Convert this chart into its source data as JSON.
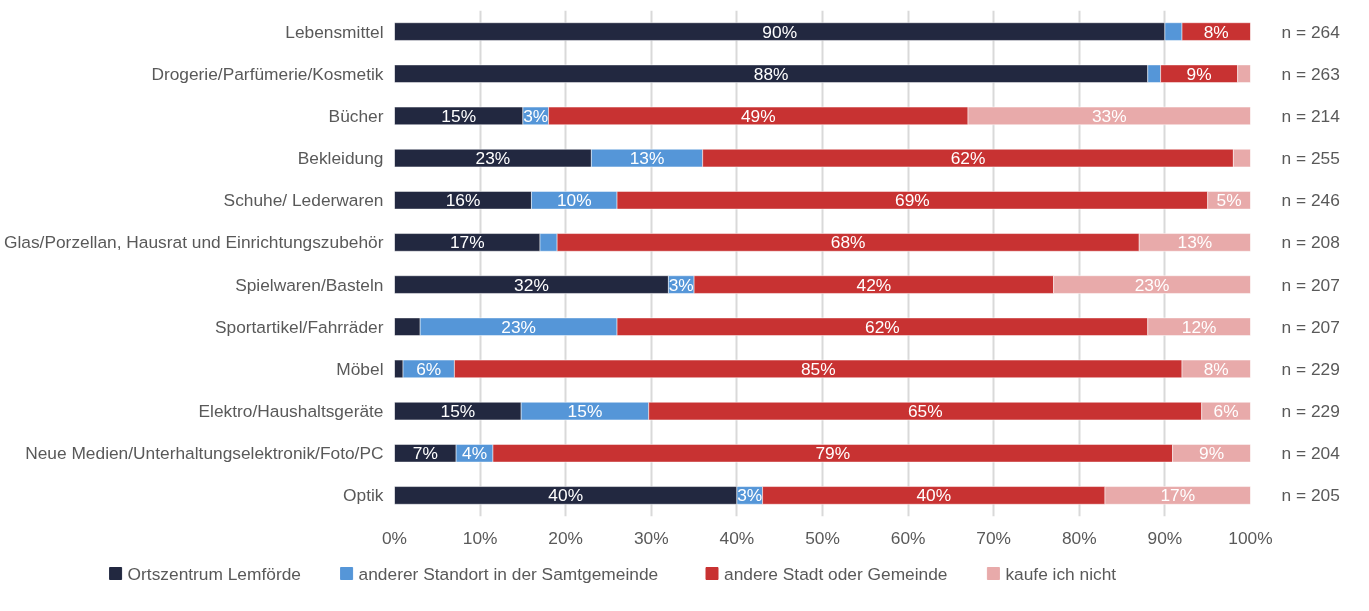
{
  "chart_data": {
    "type": "bar",
    "orientation": "horizontal",
    "stacked": true,
    "categories": [
      "Lebensmittel",
      "Drogerie/Parfümerie/Kosmetik",
      "Bücher",
      "Bekleidung",
      "Schuhe/ Lederwaren",
      "Glas/Porzellan, Hausrat und Einrichtungszubehör",
      "Spielwaren/Basteln",
      "Sportartikel/Fahrräder",
      "Möbel",
      "Elektro/Haushaltsgeräte",
      "Neue Medien/Unterhaltungselektronik/Foto/PC",
      "Optik"
    ],
    "series": [
      {
        "name": "Ortszentrum Lemförde",
        "color": "#222840",
        "values": [
          90,
          88,
          15,
          23,
          16,
          17,
          32,
          3,
          1,
          14.8,
          7.2,
          40
        ],
        "value_labels": [
          "90%",
          "88%",
          "15%",
          "23%",
          "16%",
          "17%",
          "32%",
          null,
          null,
          "15%",
          "7%",
          "40%"
        ]
      },
      {
        "name": "anderer Standort in der Samtgemeinde",
        "color": "#5596d8",
        "values": [
          2,
          1.5,
          3,
          13,
          10,
          2,
          3,
          23,
          6,
          14.9,
          4.3,
          3
        ],
        "value_labels": [
          null,
          null,
          "3%",
          "13%",
          "10%",
          null,
          "3%",
          "23%",
          "6%",
          "15%",
          "4%",
          "3%"
        ]
      },
      {
        "name": "andere Stadt oder Gemeinde",
        "color": "#c83232",
        "values": [
          8,
          9,
          49,
          62,
          69,
          68,
          42,
          62,
          85,
          64.6,
          79.4,
          40
        ],
        "value_labels": [
          "8%",
          "9%",
          "49%",
          "62%",
          "69%",
          "68%",
          "42%",
          "62%",
          "85%",
          "65%",
          "79%",
          "40%"
        ]
      },
      {
        "name": "kaufe ich nicht",
        "color": "#e8aaaa",
        "values": [
          null,
          1.5,
          33,
          2,
          5,
          13,
          23,
          12,
          8,
          5.7,
          9.1,
          17
        ],
        "value_labels": [
          null,
          null,
          "33%",
          null,
          "5%",
          "13%",
          "23%",
          "12%",
          "8%",
          "6%",
          "9%",
          "17%"
        ]
      }
    ],
    "xlim": [
      0,
      100
    ],
    "xticks": [
      {
        "value": 0,
        "label": "0%"
      },
      {
        "value": 10,
        "label": "10%"
      },
      {
        "value": 20,
        "label": "20%"
      },
      {
        "value": 30,
        "label": "30%"
      },
      {
        "value": 40,
        "label": "40%"
      },
      {
        "value": 50,
        "label": "50%"
      },
      {
        "value": 60,
        "label": "60%"
      },
      {
        "value": 70,
        "label": "70%"
      },
      {
        "value": 80,
        "label": "80%"
      },
      {
        "value": 90,
        "label": "90%"
      },
      {
        "value": 100,
        "label": "100%"
      }
    ],
    "grid": "x",
    "legend": "bottom",
    "annotations": [
      "n = 264",
      "n = 263",
      "n = 214",
      "n = 255",
      "n = 246",
      "n = 208",
      "n = 207",
      "n = 207",
      "n = 229",
      "n = 229",
      "n = 204",
      "n = 205"
    ]
  }
}
